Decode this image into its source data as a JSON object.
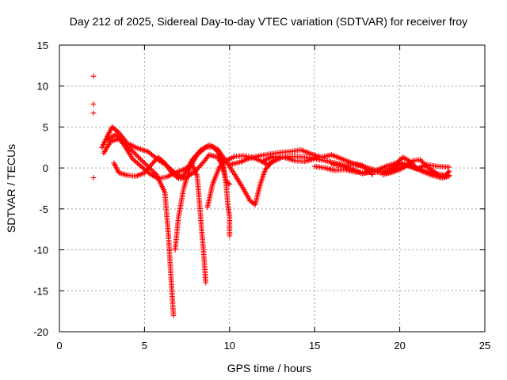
{
  "chart_data": {
    "type": "scatter",
    "title": "Day 212 of 2025, Sidereal Day-to-day VTEC variation (SDTVAR) for receiver froy",
    "xlabel": "GPS time / hours",
    "ylabel": "SDTVAR / TECUs",
    "xlim": [
      0,
      25
    ],
    "ylim": [
      -20,
      15
    ],
    "xticks": [
      0,
      5,
      10,
      15,
      20,
      25
    ],
    "yticks": [
      -20,
      -15,
      -10,
      -5,
      0,
      5,
      10,
      15
    ],
    "grid": true,
    "marker": "+",
    "series": [
      {
        "name": "SDTVAR",
        "color": "#ff0000",
        "outliers": [
          [
            2.0,
            11.2
          ],
          [
            2.0,
            7.8
          ],
          [
            2.0,
            6.7
          ],
          [
            2.0,
            -1.2
          ]
        ],
        "tracks": [
          [
            [
              2.5,
              2.5
            ],
            [
              2.8,
              3.8
            ],
            [
              3.1,
              5.0
            ],
            [
              3.5,
              4.3
            ],
            [
              4.0,
              3.0
            ],
            [
              4.6,
              2.4
            ],
            [
              5.2,
              2.0
            ],
            [
              5.8,
              1.0
            ],
            [
              6.3,
              0.3
            ],
            [
              6.8,
              -0.6
            ],
            [
              7.3,
              -1.2
            ]
          ],
          [
            [
              2.6,
              1.8
            ],
            [
              3.0,
              3.2
            ],
            [
              3.5,
              3.6
            ],
            [
              4.1,
              2.5
            ],
            [
              4.7,
              1.2
            ],
            [
              5.2,
              0.2
            ],
            [
              5.7,
              -0.8
            ],
            [
              6.2,
              -3.0
            ],
            [
              6.4,
              -8.0
            ],
            [
              6.55,
              -13.0
            ],
            [
              6.7,
              -18.0
            ]
          ],
          [
            [
              3.2,
              0.6
            ],
            [
              3.5,
              -0.6
            ],
            [
              4.0,
              -0.9
            ],
            [
              4.5,
              -1.0
            ],
            [
              5.0,
              -0.6
            ],
            [
              5.4,
              0.4
            ],
            [
              5.8,
              1.3
            ],
            [
              6.2,
              0.6
            ],
            [
              6.6,
              -0.6
            ],
            [
              7.0,
              -1.3
            ],
            [
              7.5,
              -1.1
            ],
            [
              8.0,
              -0.4
            ],
            [
              8.5,
              0.8
            ],
            [
              8.8,
              1.6
            ],
            [
              9.3,
              1.3
            ],
            [
              9.6,
              0.2
            ],
            [
              9.8,
              -1.6
            ],
            [
              10.0,
              -2.0
            ]
          ],
          [
            [
              2.8,
              3.4
            ],
            [
              3.3,
              4.1
            ],
            [
              3.8,
              2.8
            ],
            [
              4.3,
              1.1
            ],
            [
              4.8,
              0.2
            ],
            [
              5.3,
              -0.7
            ],
            [
              5.8,
              -1.3
            ],
            [
              6.3,
              -1.1
            ],
            [
              6.8,
              -0.6
            ],
            [
              7.3,
              -0.2
            ],
            [
              7.8,
              0.4
            ],
            [
              8.1,
              -1.0
            ],
            [
              8.3,
              -6.0
            ],
            [
              8.5,
              -11.0
            ],
            [
              8.6,
              -14.0
            ]
          ],
          [
            [
              6.8,
              -10.0
            ],
            [
              7.0,
              -6.0
            ],
            [
              7.3,
              -2.5
            ],
            [
              7.7,
              0.2
            ],
            [
              8.1,
              1.6
            ],
            [
              8.6,
              2.5
            ],
            [
              9.0,
              2.6
            ],
            [
              9.3,
              2.0
            ],
            [
              9.6,
              0.5
            ],
            [
              9.8,
              -2.0
            ],
            [
              9.9,
              -4.5
            ],
            [
              10.0,
              -6.0
            ],
            [
              10.0,
              -8.3
            ]
          ],
          [
            [
              7.2,
              -1.3
            ],
            [
              7.8,
              1.0
            ],
            [
              8.3,
              2.2
            ],
            [
              8.8,
              2.8
            ],
            [
              9.3,
              2.3
            ],
            [
              9.8,
              0.8
            ],
            [
              10.3,
              -0.8
            ],
            [
              10.8,
              -2.5
            ],
            [
              11.2,
              -4.0
            ],
            [
              11.5,
              -4.5
            ],
            [
              11.8,
              -2.0
            ],
            [
              12.1,
              -0.2
            ],
            [
              12.5,
              0.8
            ],
            [
              13.0,
              1.2
            ]
          ],
          [
            [
              8.7,
              -4.8
            ],
            [
              9.0,
              -2.0
            ],
            [
              9.4,
              0.1
            ],
            [
              9.8,
              0.9
            ],
            [
              10.3,
              1.4
            ],
            [
              10.8,
              1.5
            ],
            [
              11.3,
              1.3
            ],
            [
              11.8,
              0.9
            ],
            [
              12.2,
              0.4
            ],
            [
              12.6,
              0.8
            ],
            [
              13.0,
              1.3
            ],
            [
              13.5,
              1.4
            ],
            [
              14.0,
              1.4
            ],
            [
              14.5,
              1.3
            ],
            [
              15.0,
              1.2
            ]
          ],
          [
            [
              10.0,
              0.4
            ],
            [
              10.6,
              0.7
            ],
            [
              11.2,
              1.2
            ],
            [
              11.8,
              1.5
            ],
            [
              12.4,
              1.7
            ],
            [
              13.0,
              1.9
            ],
            [
              13.6,
              2.0
            ],
            [
              14.2,
              2.2
            ],
            [
              14.8,
              1.7
            ],
            [
              15.4,
              1.3
            ],
            [
              16.0,
              1.6
            ],
            [
              16.6,
              1.1
            ],
            [
              17.2,
              0.6
            ],
            [
              17.8,
              0.3
            ],
            [
              18.4,
              -0.8
            ]
          ],
          [
            [
              12.0,
              0.9
            ],
            [
              12.6,
              1.4
            ],
            [
              13.2,
              1.3
            ],
            [
              13.8,
              0.9
            ],
            [
              14.4,
              0.8
            ],
            [
              15.0,
              1.1
            ],
            [
              15.6,
              0.9
            ],
            [
              16.2,
              0.6
            ],
            [
              16.8,
              0.3
            ],
            [
              17.4,
              0.4
            ],
            [
              18.0,
              0.1
            ],
            [
              18.6,
              -0.3
            ],
            [
              19.2,
              0.2
            ],
            [
              19.8,
              0.6
            ],
            [
              20.2,
              1.3
            ],
            [
              20.6,
              0.8
            ],
            [
              21.0,
              0.0
            ],
            [
              21.5,
              -0.4
            ],
            [
              22.0,
              -0.7
            ],
            [
              22.4,
              -1.1
            ],
            [
              22.9,
              -0.9
            ]
          ],
          [
            [
              15.0,
              0.2
            ],
            [
              15.6,
              0.0
            ],
            [
              16.2,
              -0.3
            ],
            [
              16.8,
              -0.2
            ],
            [
              17.4,
              -0.5
            ],
            [
              18.0,
              -0.6
            ],
            [
              18.6,
              -0.4
            ],
            [
              19.2,
              -0.6
            ],
            [
              19.8,
              -0.2
            ],
            [
              20.4,
              0.3
            ],
            [
              21.0,
              -0.1
            ],
            [
              21.6,
              0.4
            ],
            [
              22.2,
              0.2
            ],
            [
              22.9,
              0.1
            ]
          ],
          [
            [
              16.0,
              0.5
            ],
            [
              16.6,
              0.2
            ],
            [
              17.2,
              -0.1
            ],
            [
              17.8,
              -0.7
            ],
            [
              18.3,
              -0.4
            ],
            [
              18.9,
              -0.6
            ],
            [
              19.5,
              -0.1
            ],
            [
              20.1,
              0.6
            ],
            [
              20.7,
              0.2
            ],
            [
              21.3,
              -0.4
            ],
            [
              21.9,
              -0.9
            ],
            [
              22.5,
              -1.2
            ],
            [
              22.9,
              -1.0
            ]
          ],
          [
            [
              19.0,
              -0.8
            ],
            [
              19.6,
              -0.5
            ],
            [
              20.2,
              0.0
            ],
            [
              20.8,
              0.9
            ],
            [
              21.2,
              1.0
            ],
            [
              21.7,
              0.0
            ],
            [
              22.2,
              -0.7
            ],
            [
              22.7,
              -0.9
            ],
            [
              22.9,
              -0.4
            ]
          ]
        ]
      }
    ]
  }
}
